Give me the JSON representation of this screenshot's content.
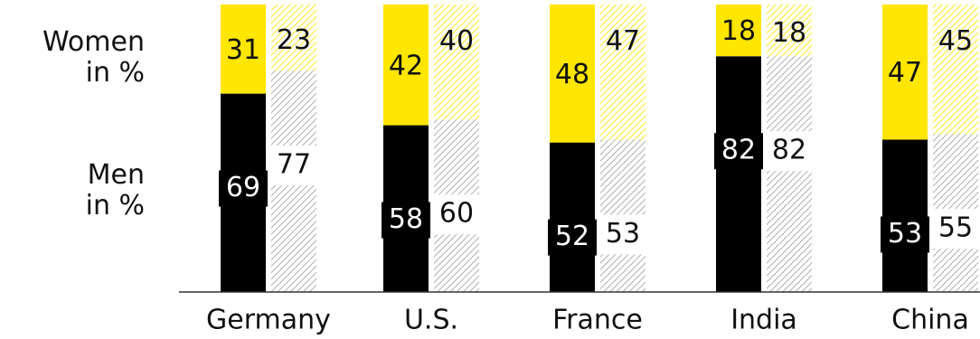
{
  "chart_data": {
    "type": "bar",
    "stacked": true,
    "categories": [
      "Germany",
      "U.S.",
      "France",
      "India",
      "China"
    ],
    "series": [
      {
        "name": "Men in %",
        "values": [
          69,
          58,
          52,
          82,
          53
        ],
        "color": "#000000"
      },
      {
        "name": "Women in %",
        "values": [
          31,
          42,
          48,
          18,
          47
        ],
        "color": "#ffe600"
      }
    ],
    "comparison_series": [
      {
        "name": "Men in %",
        "values": [
          77,
          60,
          53,
          82,
          55
        ],
        "pattern": "gray-hatched"
      },
      {
        "name": "Women in %",
        "values": [
          23,
          40,
          47,
          18,
          45
        ],
        "pattern": "yellow-hatched"
      }
    ],
    "ylim": [
      0,
      100
    ],
    "grid": false,
    "legend": "left",
    "legend_labels": {
      "women_line1": "Women",
      "women_line2": "in %",
      "men_line1": "Men",
      "men_line2": "in %"
    }
  }
}
